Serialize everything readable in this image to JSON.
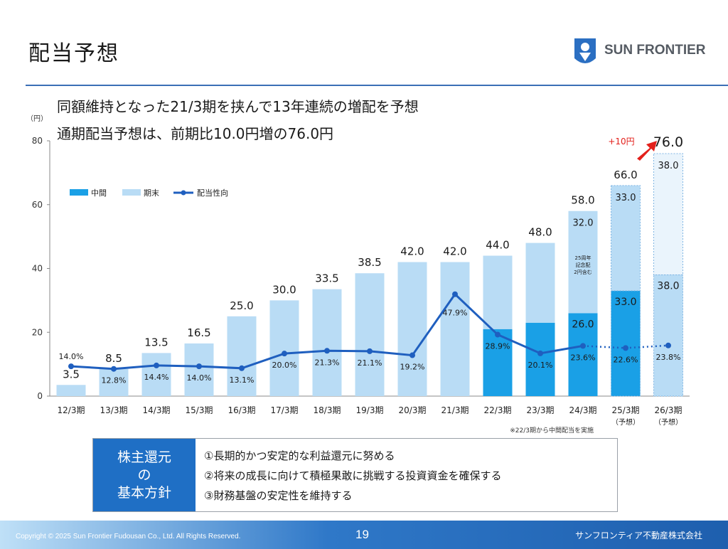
{
  "page": {
    "title": "配当予想",
    "headline1": "同額維持となった21/3期を挟んで13年連続の増配を予想",
    "headline2": "通期配当予想は、前期比10.0円増の76.0円",
    "logo_text": "SUN FRONTIER"
  },
  "chart_data": {
    "type": "bar",
    "stacked": true,
    "unit_label": "（円）",
    "ylim": [
      0,
      80
    ],
    "yticks": [
      0,
      20,
      40,
      60,
      80
    ],
    "categories": [
      "12/3期",
      "13/3期",
      "14/3期",
      "15/3期",
      "16/3期",
      "17/3期",
      "18/3期",
      "19/3期",
      "20/3期",
      "21/3期",
      "22/3期",
      "23/3期",
      "24/3期",
      "25/3期",
      "26/3期"
    ],
    "category_notes": [
      "",
      "",
      "",
      "",
      "",
      "",
      "",
      "",
      "",
      "",
      "",
      "",
      "",
      "（予想）",
      "（予想）"
    ],
    "series": [
      {
        "name": "中間",
        "color": "#1aa0e6",
        "values": [
          0,
          0,
          0,
          0,
          0,
          0,
          0,
          0,
          0,
          0,
          21,
          23,
          26,
          33,
          38
        ]
      },
      {
        "name": "期末",
        "color": "#b9dcf5",
        "values": [
          3.5,
          8.5,
          13.5,
          16.5,
          25,
          30,
          33.5,
          38.5,
          42,
          42,
          23,
          25,
          32,
          33,
          38
        ]
      }
    ],
    "interim_labels": [
      "",
      "",
      "",
      "",
      "",
      "",
      "",
      "",
      "",
      "",
      "",
      "",
      "26.0",
      "33.0",
      "38.0"
    ],
    "final_labels": [
      "",
      "",
      "",
      "",
      "",
      "",
      "",
      "",
      "",
      "",
      "",
      "",
      "32.0",
      "33.0",
      "38.0"
    ],
    "totals": [
      "3.5",
      "8.5",
      "13.5",
      "16.5",
      "25.0",
      "30.0",
      "33.5",
      "38.5",
      "42.0",
      "42.0",
      "44.0",
      "48.0",
      "58.0",
      "66.0",
      "76.0"
    ],
    "payout": {
      "name": "配当性向",
      "color": "#1f5fbf",
      "values": [
        14.0,
        12.8,
        14.4,
        14.0,
        13.1,
        20.0,
        21.3,
        21.1,
        19.2,
        47.9,
        28.9,
        20.1,
        23.6,
        22.6,
        23.8
      ],
      "labels": [
        "14.0%",
        "12.8%",
        "14.4%",
        "14.0%",
        "13.1%",
        "20.0%",
        "21.3%",
        "21.1%",
        "19.2%",
        "47.9%",
        "28.9%",
        "20.1%",
        "23.6%",
        "22.6%",
        "23.8%"
      ]
    },
    "note_24": "25周年\n記念配\n2円含む",
    "increase_label": "+10円",
    "footnote": "※22/3期から中間配当を実施"
  },
  "policy": {
    "label": [
      "株主還元",
      "の",
      "基本方針"
    ],
    "items": [
      "①長期的かつ安定的な利益還元に努める",
      "②将来の成長に向けて積極果敢に挑戦する投資資金を確保する",
      "③財務基盤の安定性を維持する"
    ]
  },
  "footer": {
    "copyright": "Copyright © 2025 Sun Frontier Fudousan Co., Ltd. All Rights Reserved.",
    "page_number": "19",
    "company": "サンフロンティア不動産株式会社"
  }
}
